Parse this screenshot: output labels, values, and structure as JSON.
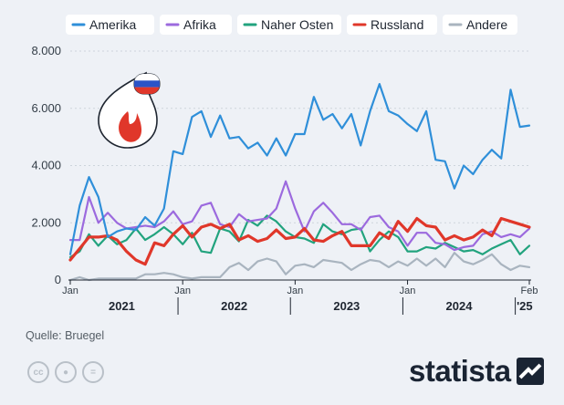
{
  "colors": {
    "Amerika": "#2f8fd9",
    "Afrika": "#9c6ade",
    "Naher Osten": "#22a37e",
    "Russland": "#e0372a",
    "Andere": "#a9b4bf",
    "axis_text": "#333d47",
    "grid": "#cdd4dc"
  },
  "footer": {
    "source": "Quelle: Bruegel",
    "brand": "statista"
  },
  "icons": [
    "flame-icon",
    "russia-flag-icon",
    "cc-icon",
    "by-icon",
    "nd-icon",
    "statista-logo-icon"
  ],
  "chart_data": {
    "type": "line",
    "title": "",
    "xlabel": "",
    "ylabel": "",
    "ylim": [
      0,
      8000
    ],
    "y_ticks": [
      0,
      2000,
      4000,
      6000,
      8000
    ],
    "y_tick_labels": [
      "0",
      "2.000",
      "4.000",
      "6.000",
      "8.000"
    ],
    "x_month_labels": [
      {
        "index": 0,
        "label": "Jan"
      },
      {
        "index": 12,
        "label": "Jan"
      },
      {
        "index": 24,
        "label": "Jan"
      },
      {
        "index": 36,
        "label": "Jan"
      },
      {
        "index": 49,
        "label": "Feb"
      }
    ],
    "x_year_labels": [
      {
        "from": 0,
        "to": 11,
        "label": "2021"
      },
      {
        "from": 12,
        "to": 23,
        "label": "2022"
      },
      {
        "from": 24,
        "to": 35,
        "label": "2023"
      },
      {
        "from": 36,
        "to": 47,
        "label": "2024"
      },
      {
        "from": 48,
        "to": 49,
        "label": "'25"
      }
    ],
    "grid": true,
    "legend_position": "top",
    "x": [
      "2021-01",
      "2021-02",
      "2021-03",
      "2021-04",
      "2021-05",
      "2021-06",
      "2021-07",
      "2021-08",
      "2021-09",
      "2021-10",
      "2021-11",
      "2021-12",
      "2022-01",
      "2022-02",
      "2022-03",
      "2022-04",
      "2022-05",
      "2022-06",
      "2022-07",
      "2022-08",
      "2022-09",
      "2022-10",
      "2022-11",
      "2022-12",
      "2023-01",
      "2023-02",
      "2023-03",
      "2023-04",
      "2023-05",
      "2023-06",
      "2023-07",
      "2023-08",
      "2023-09",
      "2023-10",
      "2023-11",
      "2023-12",
      "2024-01",
      "2024-02",
      "2024-03",
      "2024-04",
      "2024-05",
      "2024-06",
      "2024-07",
      "2024-08",
      "2024-09",
      "2024-10",
      "2024-11",
      "2024-12",
      "2025-01",
      "2025-02"
    ],
    "series": [
      {
        "name": "Amerika",
        "values": [
          900,
          2600,
          3600,
          2900,
          1500,
          1700,
          1800,
          1750,
          2200,
          1900,
          2500,
          4500,
          4400,
          5700,
          5900,
          5000,
          5750,
          4950,
          5000,
          4600,
          4800,
          4350,
          4950,
          4350,
          5100,
          5100,
          6400,
          5600,
          5800,
          5300,
          5800,
          4700,
          5900,
          6850,
          5900,
          5750,
          5450,
          5200,
          5900,
          4200,
          4150,
          3200,
          4000,
          3700,
          4200,
          4550,
          4250,
          6650,
          5350,
          5400
        ]
      },
      {
        "name": "Afrika",
        "values": [
          1400,
          1400,
          2900,
          2000,
          2350,
          2000,
          1800,
          1850,
          1900,
          1850,
          2050,
          2400,
          1950,
          2050,
          2600,
          2700,
          1950,
          1850,
          2300,
          2050,
          2100,
          2150,
          2500,
          3450,
          2500,
          1700,
          2400,
          2700,
          2350,
          1950,
          1950,
          1750,
          2200,
          2250,
          1850,
          1700,
          1200,
          1650,
          1650,
          1300,
          1250,
          1050,
          1150,
          1200,
          1600,
          1700,
          1500,
          1600,
          1500,
          1800
        ]
      },
      {
        "name": "Naher Osten",
        "values": [
          800,
          1000,
          1600,
          1200,
          1550,
          1250,
          1400,
          1800,
          1400,
          1600,
          1850,
          1600,
          1250,
          1650,
          1000,
          950,
          1800,
          1700,
          1350,
          2100,
          1900,
          2250,
          2050,
          1700,
          1500,
          1450,
          1300,
          1950,
          1700,
          1600,
          1750,
          1800,
          1000,
          1400,
          1700,
          1500,
          1000,
          1000,
          1150,
          1100,
          1300,
          1150,
          1000,
          1050,
          900,
          1100,
          1250,
          1400,
          900,
          1200
        ]
      },
      {
        "name": "Russland",
        "values": [
          700,
          1100,
          1500,
          1500,
          1550,
          1400,
          1000,
          700,
          550,
          1300,
          1200,
          1600,
          1900,
          1500,
          1850,
          1950,
          1800,
          1950,
          1400,
          1550,
          1350,
          1450,
          1750,
          1450,
          1500,
          1800,
          1400,
          1350,
          1550,
          1700,
          1200,
          1200,
          1200,
          1650,
          1450,
          2050,
          1700,
          2150,
          1900,
          1850,
          1400,
          1550,
          1400,
          1500,
          1750,
          1550,
          2150,
          2050,
          1950,
          1850
        ]
      },
      {
        "name": "Andere",
        "values": [
          0,
          100,
          0,
          50,
          50,
          50,
          50,
          50,
          200,
          200,
          250,
          200,
          100,
          50,
          100,
          100,
          100,
          450,
          600,
          350,
          650,
          750,
          650,
          200,
          500,
          550,
          450,
          700,
          650,
          600,
          350,
          550,
          700,
          650,
          450,
          650,
          500,
          750,
          500,
          750,
          450,
          950,
          650,
          550,
          700,
          900,
          550,
          350,
          500,
          450
        ]
      }
    ]
  }
}
